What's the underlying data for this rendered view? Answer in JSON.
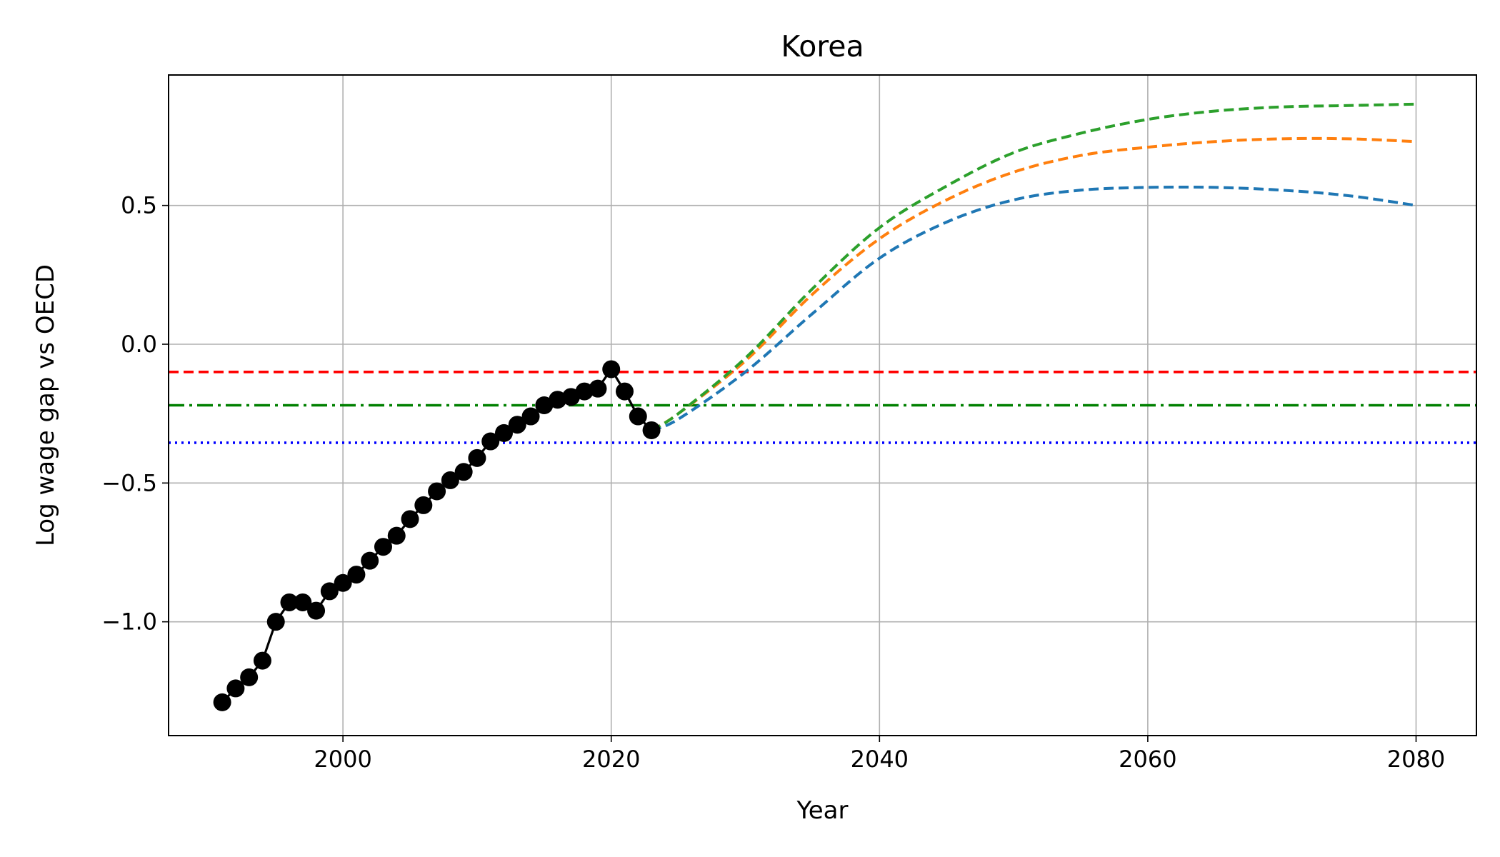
{
  "chart_data": {
    "type": "line",
    "title": "Korea",
    "xlabel": "Year",
    "ylabel": "Log wage gap vs OECD",
    "xlim": [
      1987,
      2084.5
    ],
    "ylim": [
      -1.41,
      0.97
    ],
    "xticks": [
      2000,
      2020,
      2040,
      2060,
      2080
    ],
    "yticks": [
      0.5,
      0.0,
      -0.5,
      -1.0
    ],
    "ytick_labels": [
      "0.5",
      "0.0",
      "−0.5",
      "−1.0"
    ],
    "grid": true,
    "legend": "none",
    "historical": {
      "color": "#000000",
      "x": [
        1991,
        1992,
        1993,
        1994,
        1995,
        1996,
        1997,
        1998,
        1999,
        2000,
        2001,
        2002,
        2003,
        2004,
        2005,
        2006,
        2007,
        2008,
        2009,
        2010,
        2011,
        2012,
        2013,
        2014,
        2015,
        2016,
        2017,
        2018,
        2019,
        2020,
        2021,
        2022,
        2023
      ],
      "y": [
        -1.29,
        -1.24,
        -1.2,
        -1.14,
        -1.0,
        -0.93,
        -0.93,
        -0.96,
        -0.89,
        -0.86,
        -0.83,
        -0.78,
        -0.73,
        -0.69,
        -0.63,
        -0.58,
        -0.53,
        -0.49,
        -0.46,
        -0.41,
        -0.35,
        -0.32,
        -0.29,
        -0.26,
        -0.22,
        -0.2,
        -0.19,
        -0.17,
        -0.16,
        -0.09,
        -0.17,
        -0.26,
        -0.31
      ]
    },
    "projections": [
      {
        "color": "#1f77b4",
        "x": [
          2023,
          2025,
          2030,
          2035,
          2040,
          2045,
          2050,
          2055,
          2060,
          2065,
          2070,
          2075,
          2080
        ],
        "y": [
          -0.31,
          -0.27,
          -0.1,
          0.11,
          0.31,
          0.44,
          0.52,
          0.555,
          0.565,
          0.565,
          0.555,
          0.535,
          0.5
        ]
      },
      {
        "color": "#ff7f0e",
        "x": [
          2023,
          2025,
          2030,
          2035,
          2040,
          2045,
          2050,
          2055,
          2060,
          2065,
          2070,
          2075,
          2080
        ],
        "y": [
          -0.31,
          -0.25,
          -0.06,
          0.18,
          0.38,
          0.52,
          0.62,
          0.68,
          0.71,
          0.73,
          0.74,
          0.74,
          0.73
        ]
      },
      {
        "color": "#2ca02c",
        "x": [
          2023,
          2025,
          2030,
          2035,
          2040,
          2045,
          2050,
          2055,
          2060,
          2065,
          2070,
          2075,
          2080
        ],
        "y": [
          -0.31,
          -0.25,
          -0.05,
          0.2,
          0.42,
          0.57,
          0.69,
          0.76,
          0.81,
          0.84,
          0.855,
          0.86,
          0.865
        ]
      }
    ],
    "reference_lines": [
      {
        "y": -0.1,
        "color": "#ff0000",
        "style": "dashed"
      },
      {
        "y": -0.22,
        "color": "#008000",
        "style": "dashdot"
      },
      {
        "y": -0.355,
        "color": "#0000ff",
        "style": "dotted"
      }
    ]
  }
}
